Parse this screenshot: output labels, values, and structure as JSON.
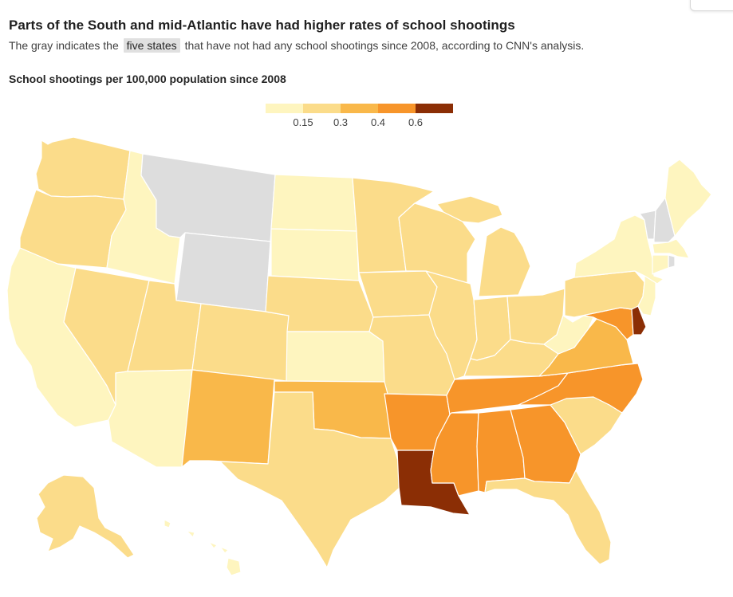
{
  "headline": "Parts of the South and mid-Atlantic have had higher rates of school shootings",
  "subtitle": {
    "before": "The gray indicates the",
    "highlight": "five states",
    "after": "that have not had any school shootings since 2008, according to CNN's analysis."
  },
  "legend": {
    "title": "School shootings per 100,000 population since 2008",
    "ticks": [
      "0.15",
      "0.3",
      "0.4",
      "0.6"
    ],
    "colors": [
      "#fef5bf",
      "#fbdc8a",
      "#f9b84a",
      "#f7952a",
      "#8b2e05"
    ],
    "no_data_color": "#dddddd"
  },
  "map_data": {
    "type": "choropleth",
    "region": "United States",
    "bins": [
      {
        "range": "< 0.15",
        "color": "#fef5bf"
      },
      {
        "range": "0.15 - 0.3",
        "color": "#fbdc8a"
      },
      {
        "range": "0.3 - 0.4",
        "color": "#f9b84a"
      },
      {
        "range": "0.4 - 0.6",
        "color": "#f7952a"
      },
      {
        "range": "> 0.6",
        "color": "#8b2e05"
      }
    ],
    "states": {
      "WA": 1,
      "OR": 1,
      "CA": 0,
      "NV": 1,
      "ID": 0,
      "MT": "none",
      "WY": "none",
      "UT": 1,
      "AZ": 0,
      "CO": 1,
      "NM": 2,
      "ND": 0,
      "SD": 0,
      "NE": 1,
      "KS": 0,
      "OK": 2,
      "TX": 1,
      "MN": 1,
      "IA": 1,
      "MO": 1,
      "AR": 3,
      "LA": 4,
      "WI": 1,
      "IL": 1,
      "MI": 1,
      "IN": 1,
      "OH": 1,
      "KY": 1,
      "TN": 3,
      "MS": 3,
      "AL": 3,
      "GA": 3,
      "FL": 1,
      "SC": 1,
      "NC": 3,
      "VA": 2,
      "WV": 0,
      "MD": 3,
      "DE": 4,
      "PA": 1,
      "NJ": 0,
      "NY": 0,
      "CT": 0,
      "RI": "none",
      "MA": 0,
      "VT": "none",
      "NH": "none",
      "ME": 0,
      "AK": 1,
      "HI": 0
    }
  }
}
